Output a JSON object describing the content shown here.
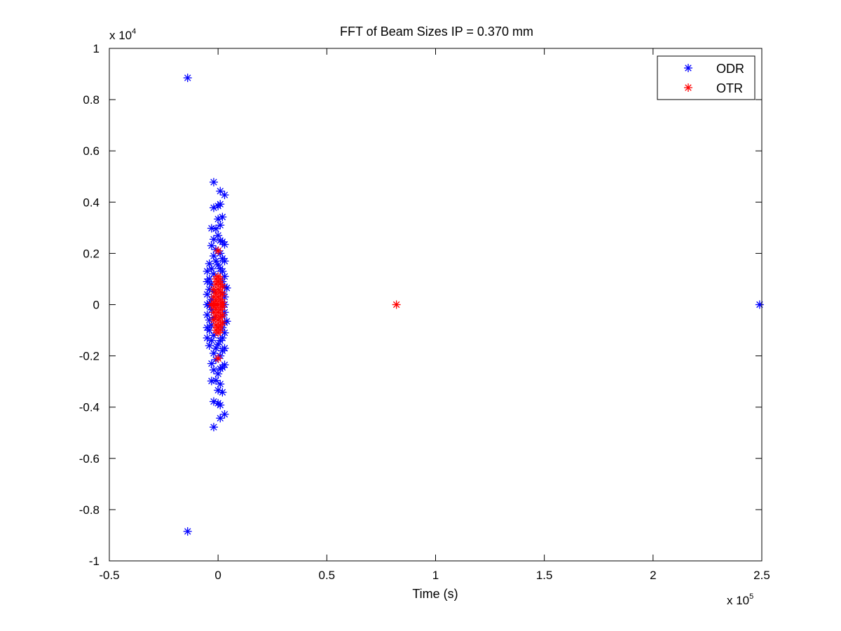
{
  "chart_data": {
    "type": "scatter",
    "title": "FFT of Beam Sizes IP = 0.370 mm",
    "xlabel": "Time (s)",
    "ylabel": "",
    "xlim": [
      -0.5,
      2.5
    ],
    "ylim": [
      -1,
      1
    ],
    "x_multiplier": {
      "base": "x 10",
      "exponent": "5"
    },
    "y_multiplier": {
      "base": "x 10",
      "exponent": "4"
    },
    "x_ticks": [
      "-0.5",
      "0",
      "0.5",
      "1",
      "1.5",
      "2",
      "2.5"
    ],
    "y_ticks": [
      "-1",
      "-0.8",
      "-0.6",
      "-0.4",
      "-0.2",
      "0",
      "0.2",
      "0.4",
      "0.6",
      "0.8",
      "1"
    ],
    "x_tick_values": [
      -0.5,
      0,
      0.5,
      1,
      1.5,
      2,
      2.5
    ],
    "y_tick_values": [
      -1,
      -0.8,
      -0.6,
      -0.4,
      -0.2,
      0,
      0.2,
      0.4,
      0.6,
      0.8,
      1
    ],
    "grid": false,
    "legend_position": "top-right",
    "marker": "asterisk",
    "series": [
      {
        "name": "ODR",
        "color": "#0000ff",
        "points": [
          [
            -0.14,
            0.885
          ],
          [
            -0.14,
            -0.885
          ],
          [
            2.49,
            0.0
          ],
          [
            -0.02,
            0.478
          ],
          [
            -0.02,
            -0.478
          ],
          [
            0.01,
            0.443
          ],
          [
            0.01,
            -0.443
          ],
          [
            0.03,
            0.428
          ],
          [
            0.03,
            -0.428
          ],
          [
            -0.02,
            0.378
          ],
          [
            -0.02,
            -0.378
          ],
          [
            0.0,
            0.385
          ],
          [
            0.0,
            -0.385
          ],
          [
            0.01,
            0.392
          ],
          [
            0.01,
            -0.392
          ],
          [
            0.02,
            0.342
          ],
          [
            0.02,
            -0.342
          ],
          [
            0.0,
            0.334
          ],
          [
            0.0,
            -0.334
          ],
          [
            -0.03,
            0.298
          ],
          [
            -0.03,
            -0.298
          ],
          [
            -0.01,
            0.296
          ],
          [
            -0.01,
            -0.296
          ],
          [
            0.01,
            0.31
          ],
          [
            0.01,
            -0.31
          ],
          [
            0.0,
            0.27
          ],
          [
            0.0,
            -0.27
          ],
          [
            -0.02,
            0.255
          ],
          [
            -0.02,
            -0.255
          ],
          [
            0.02,
            0.245
          ],
          [
            0.02,
            -0.245
          ],
          [
            0.03,
            0.235
          ],
          [
            0.03,
            -0.235
          ],
          [
            -0.03,
            0.23
          ],
          [
            -0.03,
            -0.23
          ],
          [
            -0.01,
            0.215
          ],
          [
            -0.01,
            -0.215
          ],
          [
            0.01,
            0.2
          ],
          [
            0.01,
            -0.2
          ],
          [
            -0.02,
            0.19
          ],
          [
            -0.02,
            -0.19
          ],
          [
            0.02,
            0.18
          ],
          [
            0.02,
            -0.18
          ],
          [
            0.03,
            0.17
          ],
          [
            0.03,
            -0.17
          ],
          [
            -0.04,
            0.16
          ],
          [
            -0.04,
            -0.16
          ],
          [
            0.0,
            0.155
          ],
          [
            0.0,
            -0.155
          ],
          [
            -0.03,
            0.14
          ],
          [
            -0.03,
            -0.14
          ],
          [
            0.02,
            0.13
          ],
          [
            0.02,
            -0.13
          ],
          [
            -0.05,
            0.13
          ],
          [
            -0.05,
            -0.13
          ],
          [
            -0.02,
            0.12
          ],
          [
            -0.02,
            -0.12
          ],
          [
            0.03,
            0.11
          ],
          [
            0.03,
            -0.11
          ],
          [
            -0.04,
            0.1
          ],
          [
            -0.04,
            -0.1
          ],
          [
            0.02,
            0.09
          ],
          [
            0.02,
            -0.09
          ],
          [
            -0.05,
            0.09
          ],
          [
            -0.05,
            -0.09
          ],
          [
            -0.03,
            0.08
          ],
          [
            -0.03,
            -0.08
          ],
          [
            0.03,
            0.07
          ],
          [
            0.03,
            -0.07
          ],
          [
            0.04,
            0.065
          ],
          [
            0.04,
            -0.065
          ],
          [
            -0.04,
            0.06
          ],
          [
            -0.04,
            -0.06
          ],
          [
            -0.02,
            0.05
          ],
          [
            -0.02,
            -0.05
          ],
          [
            0.02,
            0.045
          ],
          [
            0.02,
            -0.045
          ],
          [
            -0.05,
            0.04
          ],
          [
            -0.05,
            -0.04
          ],
          [
            0.03,
            0.03
          ],
          [
            0.03,
            -0.03
          ],
          [
            -0.03,
            0.02
          ],
          [
            -0.03,
            -0.02
          ],
          [
            0.02,
            0.01
          ],
          [
            0.02,
            -0.01
          ],
          [
            -0.04,
            0.005
          ],
          [
            -0.04,
            -0.005
          ],
          [
            0.03,
            0.0
          ],
          [
            -0.05,
            0.0
          ],
          [
            0.01,
            0.25
          ],
          [
            0.01,
            -0.25
          ],
          [
            -0.01,
            0.17
          ],
          [
            -0.01,
            -0.17
          ],
          [
            0.01,
            0.14
          ],
          [
            0.01,
            -0.14
          ]
        ]
      },
      {
        "name": "OTR",
        "color": "#ff0000",
        "points": [
          [
            0.82,
            0.0
          ],
          [
            0.0,
            0.21
          ],
          [
            0.0,
            -0.21
          ],
          [
            0.0,
            0.11
          ],
          [
            0.0,
            -0.11
          ],
          [
            -0.01,
            0.1
          ],
          [
            -0.01,
            -0.1
          ],
          [
            0.01,
            0.1
          ],
          [
            0.01,
            -0.1
          ],
          [
            0.0,
            0.09
          ],
          [
            0.0,
            -0.09
          ],
          [
            -0.01,
            0.08
          ],
          [
            -0.01,
            -0.08
          ],
          [
            0.01,
            0.08
          ],
          [
            0.01,
            -0.08
          ],
          [
            0.02,
            0.07
          ],
          [
            0.02,
            -0.07
          ],
          [
            -0.02,
            0.06
          ],
          [
            -0.02,
            -0.06
          ],
          [
            0.0,
            0.06
          ],
          [
            0.0,
            -0.06
          ],
          [
            0.01,
            0.05
          ],
          [
            0.01,
            -0.05
          ],
          [
            -0.01,
            0.045
          ],
          [
            -0.01,
            -0.045
          ],
          [
            0.02,
            0.04
          ],
          [
            0.02,
            -0.04
          ],
          [
            -0.02,
            0.03
          ],
          [
            -0.02,
            -0.03
          ],
          [
            0.0,
            0.03
          ],
          [
            0.0,
            -0.03
          ],
          [
            0.01,
            0.02
          ],
          [
            0.01,
            -0.02
          ],
          [
            -0.01,
            0.015
          ],
          [
            -0.01,
            -0.015
          ],
          [
            0.02,
            0.01
          ],
          [
            0.02,
            -0.01
          ],
          [
            -0.02,
            0.005
          ],
          [
            -0.02,
            -0.005
          ],
          [
            -0.03,
            0.0
          ],
          [
            0.0,
            0.0
          ],
          [
            0.02,
            0.0
          ],
          [
            -0.01,
            0.0
          ]
        ]
      }
    ]
  }
}
